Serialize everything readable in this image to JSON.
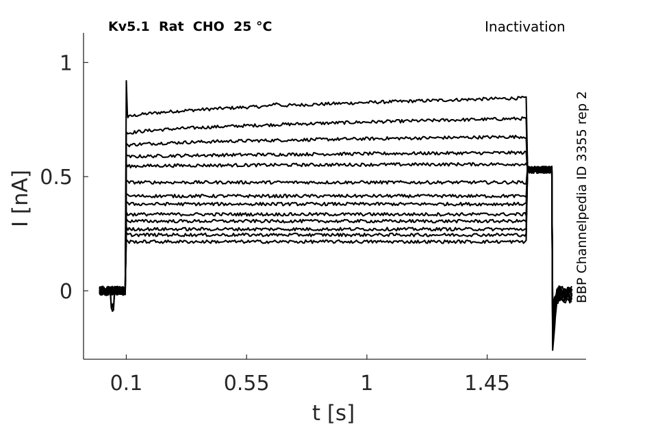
{
  "chart_data": {
    "type": "line",
    "title": "Kv5.1  Rat  CHO  25 °C",
    "protocol_label": "Inactivation",
    "side_label": "BBP Channelpedia ID 3355 rep 2",
    "xlabel": "t [s]",
    "ylabel": "I [nA]",
    "xlim": [
      -0.06,
      1.82
    ],
    "ylim": [
      -0.3,
      1.13
    ],
    "x_ticks": [
      0.1,
      0.55,
      1,
      1.45
    ],
    "x_tick_labels": [
      "0.1",
      "0.55",
      "1",
      "1.45"
    ],
    "y_ticks": [
      0,
      0.5,
      1
    ],
    "y_tick_labels": [
      "0",
      "0.5",
      "1"
    ],
    "grid": false,
    "legend": "none",
    "line_color": "#000000",
    "segments": {
      "baseline_start": 0.0,
      "step_on": 0.1,
      "step_off": 1.6,
      "tail_end": 1.695,
      "trace_end": 1.77
    },
    "peak_transient": 0.92,
    "tail_current": 0.53,
    "tail_dip": -0.26,
    "series": [
      {
        "start": 0.755,
        "end": 0.845
      },
      {
        "start": 0.685,
        "end": 0.755
      },
      {
        "start": 0.635,
        "end": 0.675
      },
      {
        "start": 0.585,
        "end": 0.605
      },
      {
        "start": 0.545,
        "end": 0.555
      },
      {
        "start": 0.475,
        "end": 0.475
      },
      {
        "start": 0.415,
        "end": 0.415
      },
      {
        "start": 0.38,
        "end": 0.38
      },
      {
        "start": 0.335,
        "end": 0.335
      },
      {
        "start": 0.305,
        "end": 0.305
      },
      {
        "start": 0.27,
        "end": 0.27
      },
      {
        "start": 0.245,
        "end": 0.245
      },
      {
        "start": 0.215,
        "end": 0.215
      }
    ]
  }
}
